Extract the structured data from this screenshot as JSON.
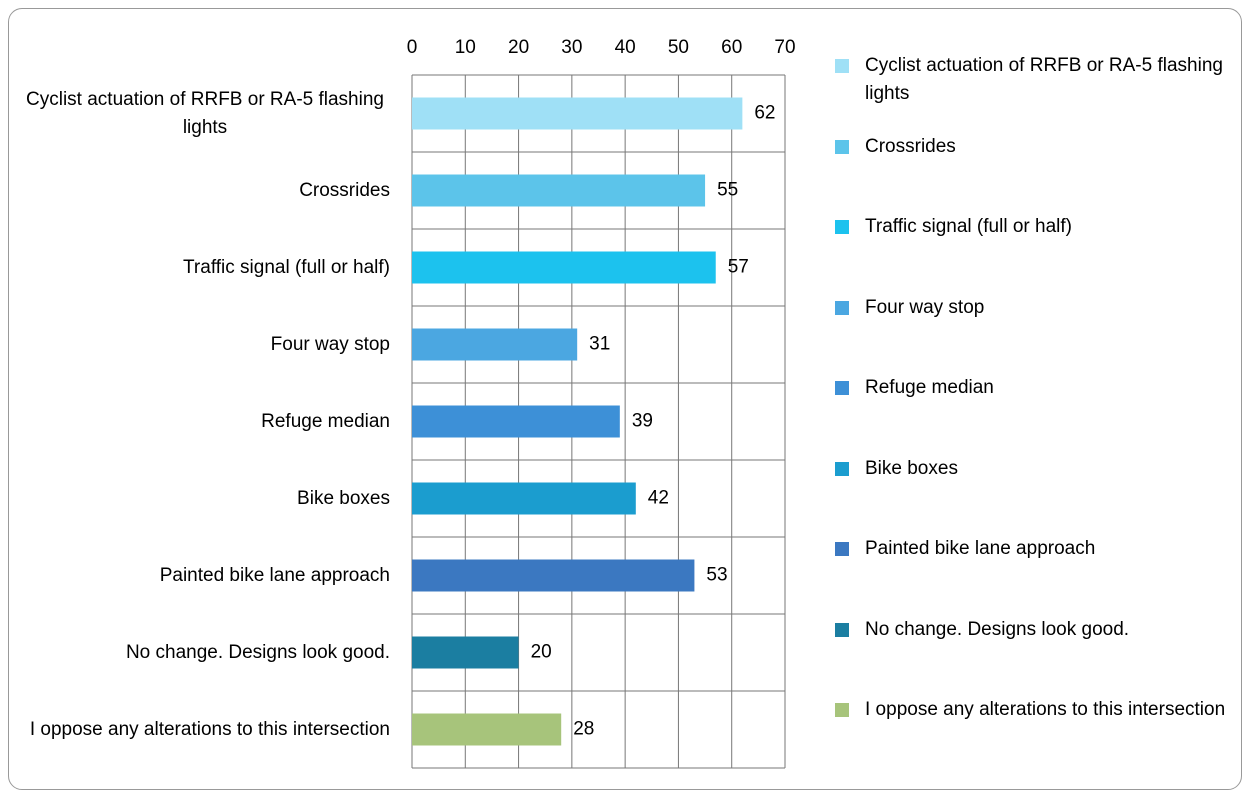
{
  "chart_data": {
    "type": "bar",
    "orientation": "horizontal",
    "categories": [
      "Cyclist actuation of RRFB or RA-5 flashing lights",
      "Crossrides",
      "Traffic signal (full or half)",
      "Four way stop",
      "Refuge median",
      "Bike boxes",
      "Painted bike lane approach",
      "No change. Designs look good.",
      "I oppose any alterations to this intersection"
    ],
    "values": [
      62,
      55,
      57,
      31,
      39,
      42,
      53,
      20,
      28
    ],
    "colors": [
      "#9fe0f6",
      "#5cc4ea",
      "#1cc2ee",
      "#4ba7e1",
      "#3d90d7",
      "#1b9dcf",
      "#3b78c1",
      "#1b7ea1",
      "#a7c47b"
    ],
    "xlim": [
      0,
      70
    ],
    "xticks": [
      0,
      10,
      20,
      30,
      40,
      50,
      60,
      70
    ],
    "grid": true,
    "legend": "right"
  }
}
